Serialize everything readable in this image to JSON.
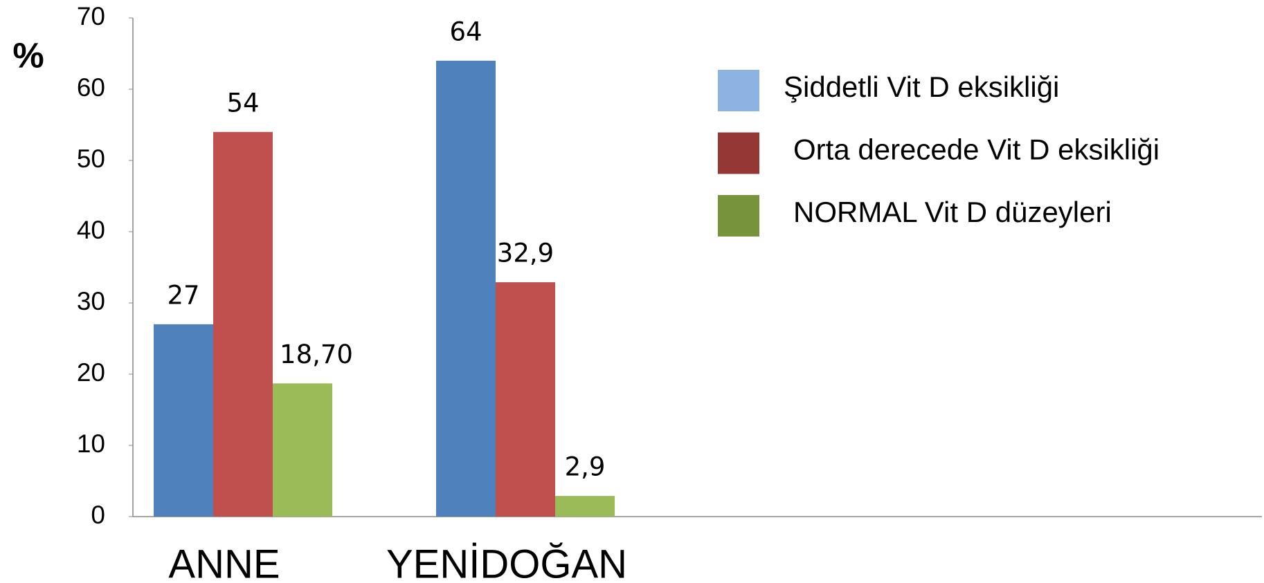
{
  "chart_data": {
    "type": "bar",
    "y_label": "%",
    "categories": [
      "ANNE",
      "YENİDOĞAN"
    ],
    "series": [
      {
        "name": "Şiddetli Vit D eksikliği",
        "color": "#4f81bd",
        "legend_color": "#8db3e2",
        "values": [
          27,
          64
        ],
        "value_labels": [
          "27",
          "64"
        ]
      },
      {
        "name": "Orta derecede Vit D eksikliği",
        "color": "#c0504d",
        "legend_color": "#953735",
        "values": [
          54,
          32.9
        ],
        "value_labels": [
          "54",
          "32,9"
        ]
      },
      {
        "name": "NORMAL Vit D düzeyleri",
        "color": "#9bbb59",
        "legend_color": "#77933c",
        "values": [
          18.7,
          2.9
        ],
        "value_labels": [
          "18,70",
          "2,9"
        ]
      }
    ],
    "ylim": [
      0,
      70
    ],
    "yticks": [
      0,
      10,
      20,
      30,
      40,
      50,
      60,
      70
    ],
    "grid": false,
    "legend": "right"
  }
}
